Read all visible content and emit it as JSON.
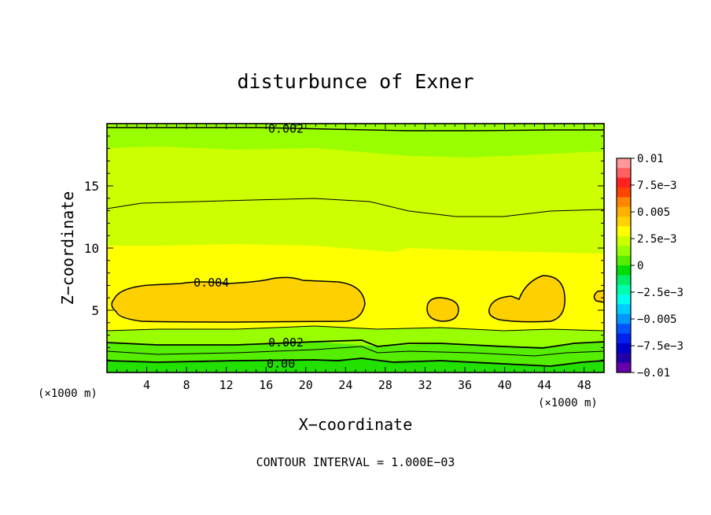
{
  "chart_data": {
    "type": "contour",
    "title": "disturbunce of Exner",
    "xlabel": "X−coordinate",
    "ylabel": "Z−coordinate",
    "x_unit_left": "(×1000 m)",
    "x_unit_right": "(×1000 m)",
    "footer": "CONTOUR INTERVAL = 1.000E−03",
    "xlim": [
      0,
      50
    ],
    "ylim": [
      0,
      20
    ],
    "x_ticks": [
      4,
      8,
      12,
      16,
      20,
      24,
      28,
      32,
      36,
      40,
      44,
      48
    ],
    "x_tick_labels": [
      "4",
      "8",
      "12",
      "16",
      "20",
      "24",
      "28",
      "32",
      "36",
      "40",
      "44",
      "48"
    ],
    "y_ticks": [
      5,
      10,
      15
    ],
    "y_tick_labels": [
      "5",
      "10",
      "15"
    ],
    "contour_interval": 0.001,
    "contour_labels": [
      {
        "text": "0.002",
        "x": 18,
        "z": 19.6
      },
      {
        "text": "0.004",
        "x": 10.5,
        "z": 7.2
      },
      {
        "text": "0.002",
        "x": 18,
        "z": 2.4
      },
      {
        "text": "0.00",
        "x": 17.5,
        "z": 0.7
      }
    ],
    "colorbar": {
      "labels": [
        "0.01",
        "7.5e−3",
        "0.005",
        "2.5e−3",
        "0",
        "−2.5e−3",
        "−0.005",
        "−7.5e−3",
        "−0.01"
      ],
      "values": [
        0.01,
        0.0075,
        0.005,
        0.0025,
        0,
        -0.0025,
        -0.005,
        -0.0075,
        -0.01
      ],
      "colors_top_to_bottom": [
        "#ff9999",
        "#ff6060",
        "#ff2020",
        "#ff4400",
        "#ff8800",
        "#ffb000",
        "#ffd400",
        "#ffff00",
        "#ccff00",
        "#99ff00",
        "#55ee00",
        "#00dd00",
        "#00ee66",
        "#00ffaa",
        "#00ffee",
        "#00ccff",
        "#0099ff",
        "#0055ff",
        "#0022ee",
        "#0000cc",
        "#2200aa",
        "#6600aa"
      ]
    },
    "bands_bottom_to_top": [
      {
        "range": [
          0.0,
          0.001
        ],
        "color": "#22e000",
        "z_from": 0.0,
        "z_to": 1.0
      },
      {
        "range": [
          0.001,
          0.002
        ],
        "color": "#55ee00",
        "z_from": 1.0,
        "z_to": 2.4
      },
      {
        "range": [
          0.002,
          0.003
        ],
        "color": "#99ff00",
        "z_from": 2.4,
        "z_to": 3.7
      },
      {
        "range": [
          0.003,
          0.004
        ],
        "color": "#ffff00",
        "z_from": 3.7,
        "z_to": 10.0
      },
      {
        "range": [
          0.002,
          0.003
        ],
        "color": "#ccff00",
        "z_from": 10.0,
        "z_to": 18.0
      },
      {
        "range": [
          0.001,
          0.002
        ],
        "color": "#99ff00",
        "z_from": 18.0,
        "z_to": 20.0
      }
    ],
    "cells_above_0.004": [
      {
        "x_range": [
          0.5,
          26.3
        ],
        "z_range": [
          4.1,
          7.6
        ]
      },
      {
        "x_range": [
          31.5,
          35.5
        ],
        "z_range": [
          4.1,
          6.0
        ]
      },
      {
        "x_range": [
          38.7,
          46.0
        ],
        "z_range": [
          4.1,
          7.8
        ]
      },
      {
        "x_range": [
          48.8,
          50.0
        ],
        "z_range": [
          5.5,
          6.3
        ]
      }
    ]
  }
}
